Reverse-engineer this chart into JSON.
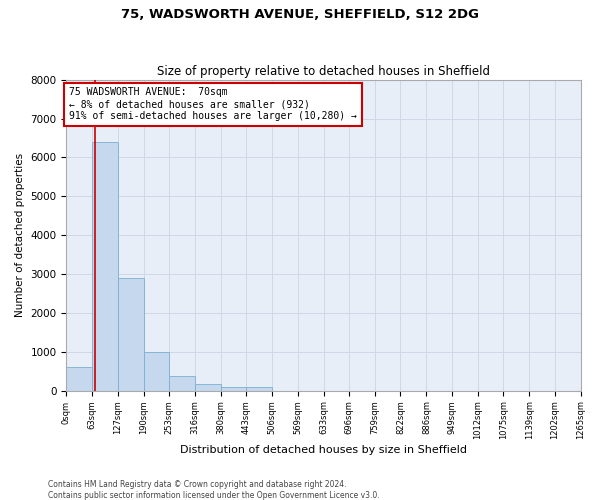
{
  "title1": "75, WADSWORTH AVENUE, SHEFFIELD, S12 2DG",
  "title2": "Size of property relative to detached houses in Sheffield",
  "xlabel": "Distribution of detached houses by size in Sheffield",
  "ylabel": "Number of detached properties",
  "footnote1": "Contains HM Land Registry data © Crown copyright and database right 2024.",
  "footnote2": "Contains public sector information licensed under the Open Government Licence v3.0.",
  "bin_edges": [
    0,
    63,
    127,
    190,
    253,
    316,
    380,
    443,
    506,
    569,
    633,
    696,
    759,
    822,
    886,
    949,
    1012,
    1075,
    1139,
    1202,
    1265
  ],
  "bar_heights": [
    600,
    6400,
    2900,
    1000,
    380,
    175,
    100,
    100,
    0,
    0,
    0,
    0,
    0,
    0,
    0,
    0,
    0,
    0,
    0,
    0
  ],
  "bar_color": "#c5d8ee",
  "bar_edge_color": "#7aafd4",
  "grid_color": "#d0d8e8",
  "background_color": "#e8eef8",
  "property_size": 70,
  "property_line_color": "#cc0000",
  "annotation_line1": "75 WADSWORTH AVENUE:  70sqm",
  "annotation_line2": "← 8% of detached houses are smaller (932)",
  "annotation_line3": "91% of semi-detached houses are larger (10,280) →",
  "annotation_box_color": "#cc0000",
  "ylim": [
    0,
    8000
  ],
  "yticks": [
    0,
    1000,
    2000,
    3000,
    4000,
    5000,
    6000,
    7000,
    8000
  ],
  "tick_labels": [
    "0sqm",
    "63sqm",
    "127sqm",
    "190sqm",
    "253sqm",
    "316sqm",
    "380sqm",
    "443sqm",
    "506sqm",
    "569sqm",
    "633sqm",
    "696sqm",
    "759sqm",
    "822sqm",
    "886sqm",
    "949sqm",
    "1012sqm",
    "1075sqm",
    "1139sqm",
    "1202sqm",
    "1265sqm"
  ],
  "title1_fontsize": 9.5,
  "title2_fontsize": 8.5,
  "ylabel_fontsize": 7.5,
  "xlabel_fontsize": 8,
  "ytick_fontsize": 7.5,
  "xtick_fontsize": 6
}
